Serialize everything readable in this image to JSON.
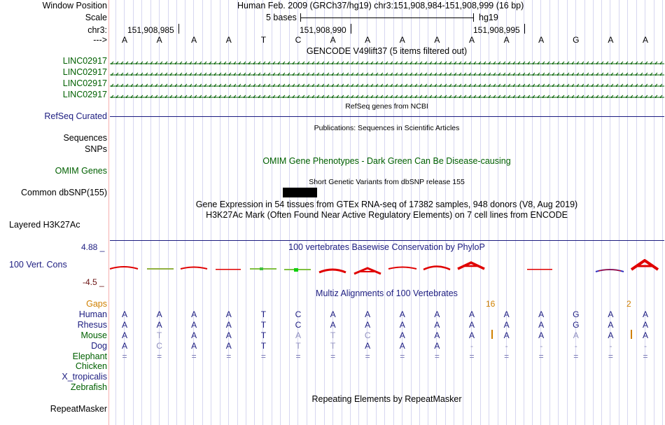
{
  "header": {
    "window_position_label": "Window Position",
    "scale_label": "Scale",
    "chr_label": "chr3:",
    "arrow_label": "--->",
    "title": "Human Feb. 2009 (GRCh37/hg19)   chr3:151,908,984-151,908,999 (16 bp)",
    "scale_text": "5 bases",
    "assembly": "hg19",
    "coords": [
      "151,908,985",
      "151,908,990",
      "151,908,995"
    ]
  },
  "bases": [
    "A",
    "A",
    "A",
    "A",
    "T",
    "C",
    "A",
    "A",
    "A",
    "A",
    "A",
    "A",
    "A",
    "G",
    "A",
    "A"
  ],
  "tracks": {
    "gencode_title": "GENCODE V49lift37 (5 items filtered out)",
    "linc_labels": [
      "LINC02917",
      "LINC02917",
      "LINC02917",
      "LINC02917"
    ],
    "refseq_label": "RefSeq Curated",
    "refseq_title": "RefSeq genes from NCBI",
    "pubs_title": "Publications: Sequences in Scientific Articles",
    "sequences_label": "Sequences",
    "snps_label": "SNPs",
    "omim_label": "OMIM Genes",
    "omim_title": "OMIM Gene Phenotypes - Dark Green Can Be Disease-causing",
    "dbsnp_label": "Common dbSNP(155)",
    "dbsnp_title": "Short Genetic Variants from dbSNP release 155",
    "gtex_title": "Gene Expression in 54 tissues from GTEx RNA-seq of 17382 samples, 948 donors (V8, Aug 2019)",
    "h3k_label": "Layered H3K27Ac",
    "h3k_title": "H3K27Ac Mark (Often Found Near Active Regulatory Elements) on 7 cell lines from ENCODE",
    "cons_title": "100 vertebrates Basewise Conservation by PhyloP",
    "cons_label": "100 Vert. Cons",
    "cons_max": "4.88 _",
    "cons_min": "-4.5 _",
    "multiz_title": "Multiz Alignments of 100 Vertebrates",
    "gaps_label": "Gaps",
    "gap_counts": [
      "16",
      "2"
    ],
    "repeat_label": "RepeatMasker",
    "repeat_title": "Repeating Elements by RepeatMasker"
  },
  "species": {
    "human": {
      "label": "Human",
      "bases": [
        "A",
        "A",
        "A",
        "A",
        "T",
        "C",
        "A",
        "A",
        "A",
        "A",
        "A",
        "A",
        "A",
        "G",
        "A",
        "A"
      ]
    },
    "rhesus": {
      "label": "Rhesus",
      "bases": [
        "A",
        "A",
        "A",
        "A",
        "T",
        "C",
        "A",
        "A",
        "A",
        "A",
        "A",
        "A",
        "A",
        "G",
        "A",
        "A"
      ]
    },
    "mouse": {
      "label": "Mouse",
      "bases": [
        "A",
        "T",
        "A",
        "A",
        "T",
        "A",
        "T",
        "C",
        "A",
        "A",
        "A",
        "A",
        "A",
        "A",
        "A",
        "A"
      ]
    },
    "dog": {
      "label": "Dog",
      "bases": [
        "A",
        "C",
        "A",
        "A",
        "T",
        "T",
        "T",
        "A",
        "A",
        "A",
        "-",
        "-",
        "-",
        "-",
        "-",
        "-"
      ]
    },
    "elephant": {
      "label": "Elephant",
      "bases": [
        "=",
        "=",
        "=",
        "=",
        "=",
        "=",
        "=",
        "=",
        "=",
        "=",
        "=",
        "=",
        "=",
        "=",
        "=",
        "="
      ]
    },
    "chicken": {
      "label": "Chicken"
    },
    "xtrop": {
      "label": "X_tropicalis"
    },
    "zebrafish": {
      "label": "Zebrafish"
    }
  },
  "colors": {
    "navy": "#1c1c80",
    "green": "#006000",
    "gaps_orange": "#d08000",
    "cons_red": "#e00000",
    "grid": "#d6d6f0"
  }
}
